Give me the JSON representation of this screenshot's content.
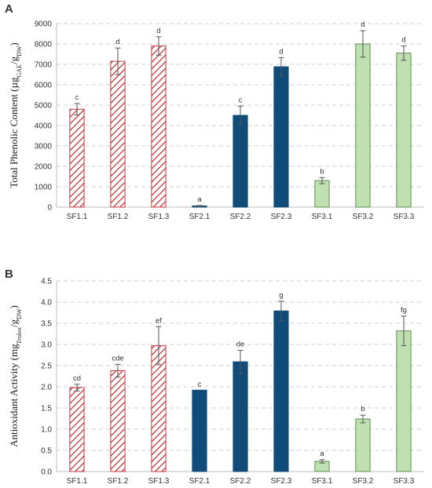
{
  "colors": {
    "hatch_stroke": "#c0383d",
    "hatch_bg": "#ffffff",
    "navy": "#104c7a",
    "green": "#bfe0b0",
    "green_stroke": "#5f8f52"
  },
  "chart_data": [
    {
      "panel": "A",
      "type": "bar",
      "ylabel": {
        "main": "Total Phenolic Content (µg",
        "sub1": "GAE",
        "mid": "/g",
        "sub2": "DW",
        "end": ")"
      },
      "ylim": [
        0,
        9000
      ],
      "yticks": [
        "0",
        "1000",
        "2000",
        "3000",
        "4000",
        "5000",
        "6000",
        "7000",
        "8000",
        "9000"
      ],
      "grid": true,
      "categories": [
        "SF1.1",
        "SF1.2",
        "SF1.3",
        "SF2.1",
        "SF2.2",
        "SF2.3",
        "SF3.1",
        "SF3.2",
        "SF3.3"
      ],
      "values": [
        4800,
        7150,
        7900,
        50,
        4500,
        6880,
        1300,
        8000,
        7550
      ],
      "errors": [
        280,
        650,
        450,
        30,
        450,
        450,
        150,
        650,
        350
      ],
      "letters": [
        "c",
        "d",
        "d",
        "a",
        "c",
        "d",
        "b",
        "d",
        "d"
      ],
      "styles": [
        "hatch",
        "hatch",
        "hatch",
        "navy",
        "navy",
        "navy",
        "green",
        "green",
        "green"
      ]
    },
    {
      "panel": "B",
      "type": "bar",
      "ylabel": {
        "main": "Antioxidant Activity (mg",
        "sub1": "Trolox",
        "mid": "/g",
        "sub2": "DW",
        "end": ")"
      },
      "ylim": [
        0,
        4.5
      ],
      "yticks": [
        "0.0",
        "0.5",
        "1.0",
        "1.5",
        "2.0",
        "2.5",
        "3.0",
        "3.5",
        "4.0",
        "4.5"
      ],
      "grid": true,
      "categories": [
        "SF1.1",
        "SF1.2",
        "SF1.3",
        "SF2.1",
        "SF2.2",
        "SF2.3",
        "SF3.1",
        "SF3.2",
        "SF3.3"
      ],
      "values": [
        1.98,
        2.38,
        2.97,
        1.92,
        2.59,
        3.79,
        0.24,
        1.24,
        3.32
      ],
      "errors": [
        0.08,
        0.15,
        0.45,
        0.0,
        0.27,
        0.23,
        0.04,
        0.09,
        0.35
      ],
      "letters": [
        "cd",
        "cde",
        "ef",
        "c",
        "de",
        "g",
        "a",
        "b",
        "fg"
      ],
      "styles": [
        "hatch",
        "hatch",
        "hatch",
        "navy",
        "navy",
        "navy",
        "green",
        "green",
        "green"
      ]
    }
  ]
}
